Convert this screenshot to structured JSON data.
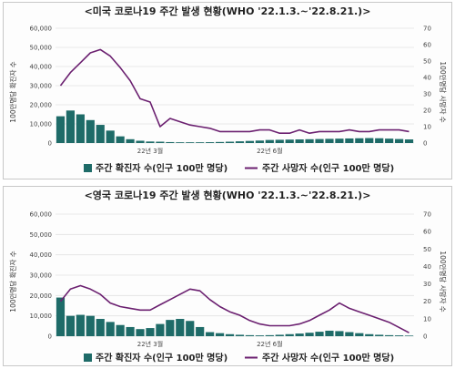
{
  "chart_data": [
    {
      "type": "bar",
      "title": "<미국 코로나19 주간 발생 현황(WHO '22.1.3.~'22.8.21.)>",
      "ylabel_left": "100만명당 확진자 수",
      "ylabel_right": "100만명당 사망자 수",
      "x_tick_labels": [
        "22년 3월",
        "22년 6월"
      ],
      "x_tick_index": [
        9,
        21
      ],
      "ylim_left": [
        0,
        60000
      ],
      "yticks_left": [
        "0",
        "10,000",
        "20,000",
        "30,000",
        "40,000",
        "50,000",
        "60,000"
      ],
      "ylim_right": [
        0,
        70
      ],
      "yticks_right": [
        "0",
        "10",
        "20",
        "30",
        "40",
        "50",
        "60",
        "70"
      ],
      "legend": "bottom",
      "grid": true,
      "series": [
        {
          "name": "주간 확진자 수(인구 100만 명당)",
          "type": "bar",
          "axis": "left",
          "color": "#1e6b68",
          "values": [
            14000,
            17000,
            15000,
            12000,
            9500,
            6500,
            3500,
            2000,
            1200,
            800,
            700,
            500,
            400,
            400,
            400,
            450,
            550,
            700,
            900,
            1100,
            1300,
            1600,
            1700,
            1800,
            1900,
            2000,
            2100,
            2200,
            2300,
            2400,
            2500,
            2600,
            2500,
            2300,
            2100,
            1900
          ]
        },
        {
          "name": "주간 사망자 수(인구 100만 명당)",
          "type": "line",
          "axis": "right",
          "color": "#6b2070",
          "values": [
            35,
            43,
            49,
            55,
            57,
            53,
            46,
            38,
            27,
            25,
            10,
            15,
            13,
            11,
            10,
            9,
            7,
            7,
            7,
            7,
            8,
            8,
            6,
            6,
            8,
            6,
            7,
            7,
            7,
            8,
            7,
            7,
            8,
            8,
            8,
            7
          ]
        }
      ]
    },
    {
      "type": "bar",
      "title": "<영국 코로나19 주간 발생 현황(WHO '22.1.3.~'22.8.21.)>",
      "ylabel_left": "100만명당 확진자 수",
      "ylabel_right": "100만명당 사망자 수",
      "x_tick_labels": [
        "22년 3월",
        "22년 6월"
      ],
      "x_tick_index": [
        9,
        21
      ],
      "ylim_left": [
        0,
        60000
      ],
      "yticks_left": [
        "0",
        "10,000",
        "20,000",
        "30,000",
        "40,000",
        "50,000",
        "60,000"
      ],
      "ylim_right": [
        0,
        70
      ],
      "yticks_right": [
        "0",
        "10",
        "20",
        "30",
        "40",
        "50",
        "60",
        "70"
      ],
      "legend": "bottom",
      "grid": true,
      "series": [
        {
          "name": "주간 확진자 수(인구 100만 명당)",
          "type": "bar",
          "axis": "left",
          "color": "#1e6b68",
          "values": [
            19000,
            10000,
            10500,
            10000,
            8500,
            7000,
            5500,
            4500,
            3500,
            4000,
            6000,
            8000,
            8500,
            7500,
            4500,
            2000,
            1500,
            1000,
            700,
            500,
            400,
            500,
            700,
            1000,
            1300,
            1700,
            2200,
            2700,
            2500,
            2000,
            1500,
            1000,
            700,
            500,
            400,
            300
          ]
        },
        {
          "name": "주간 사망자 수(인구 100만 명당)",
          "type": "line",
          "axis": "right",
          "color": "#6b2070",
          "values": [
            20,
            27,
            29,
            27,
            24,
            19,
            17,
            16,
            15,
            15,
            18,
            21,
            24,
            27,
            26,
            21,
            17,
            14,
            12,
            9,
            7,
            6,
            6,
            6,
            7,
            9,
            12,
            15,
            19,
            16,
            14,
            12,
            10,
            8,
            5,
            2
          ]
        }
      ]
    }
  ]
}
